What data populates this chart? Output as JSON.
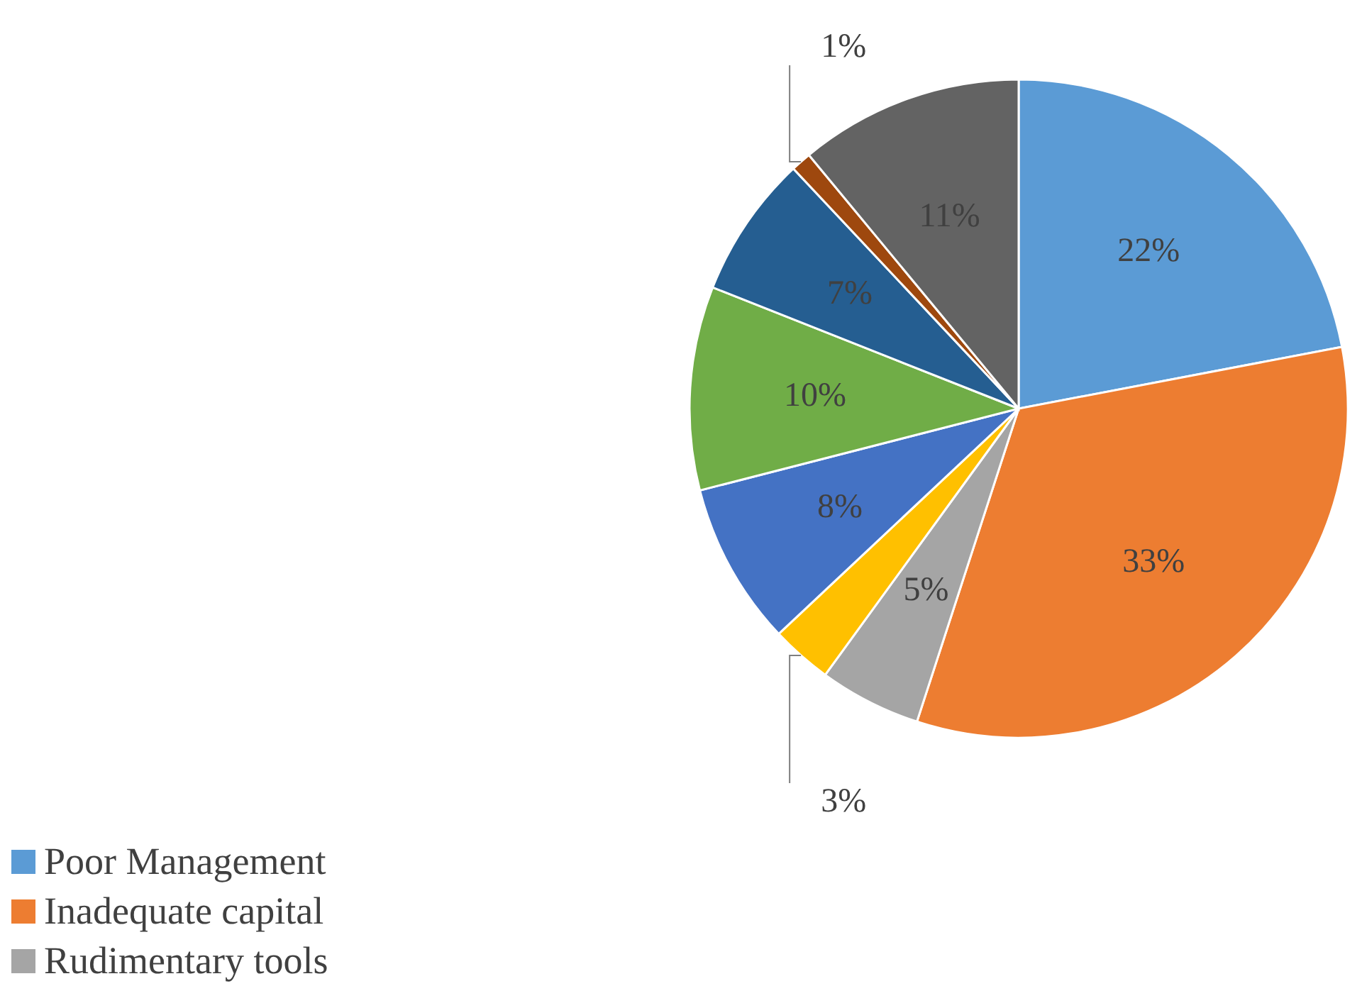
{
  "chart_data": {
    "type": "pie",
    "categories": [
      "Poor Management",
      "Inadequate capital",
      "Rudimentary tools",
      null,
      null,
      null,
      null,
      null,
      null
    ],
    "values": [
      22,
      33,
      5,
      3,
      8,
      10,
      7,
      1,
      11
    ],
    "value_labels": [
      "22%",
      "33%",
      "5%",
      "3%",
      "8%",
      "10%",
      "7%",
      "1%",
      "11%"
    ],
    "colors": [
      "#5b9bd5",
      "#ed7d31",
      "#a5a5a5",
      "#ffc000",
      "#4472c4",
      "#70ad47",
      "#255e91",
      "#9e480e",
      "#636363"
    ],
    "legend": "bottom left"
  }
}
